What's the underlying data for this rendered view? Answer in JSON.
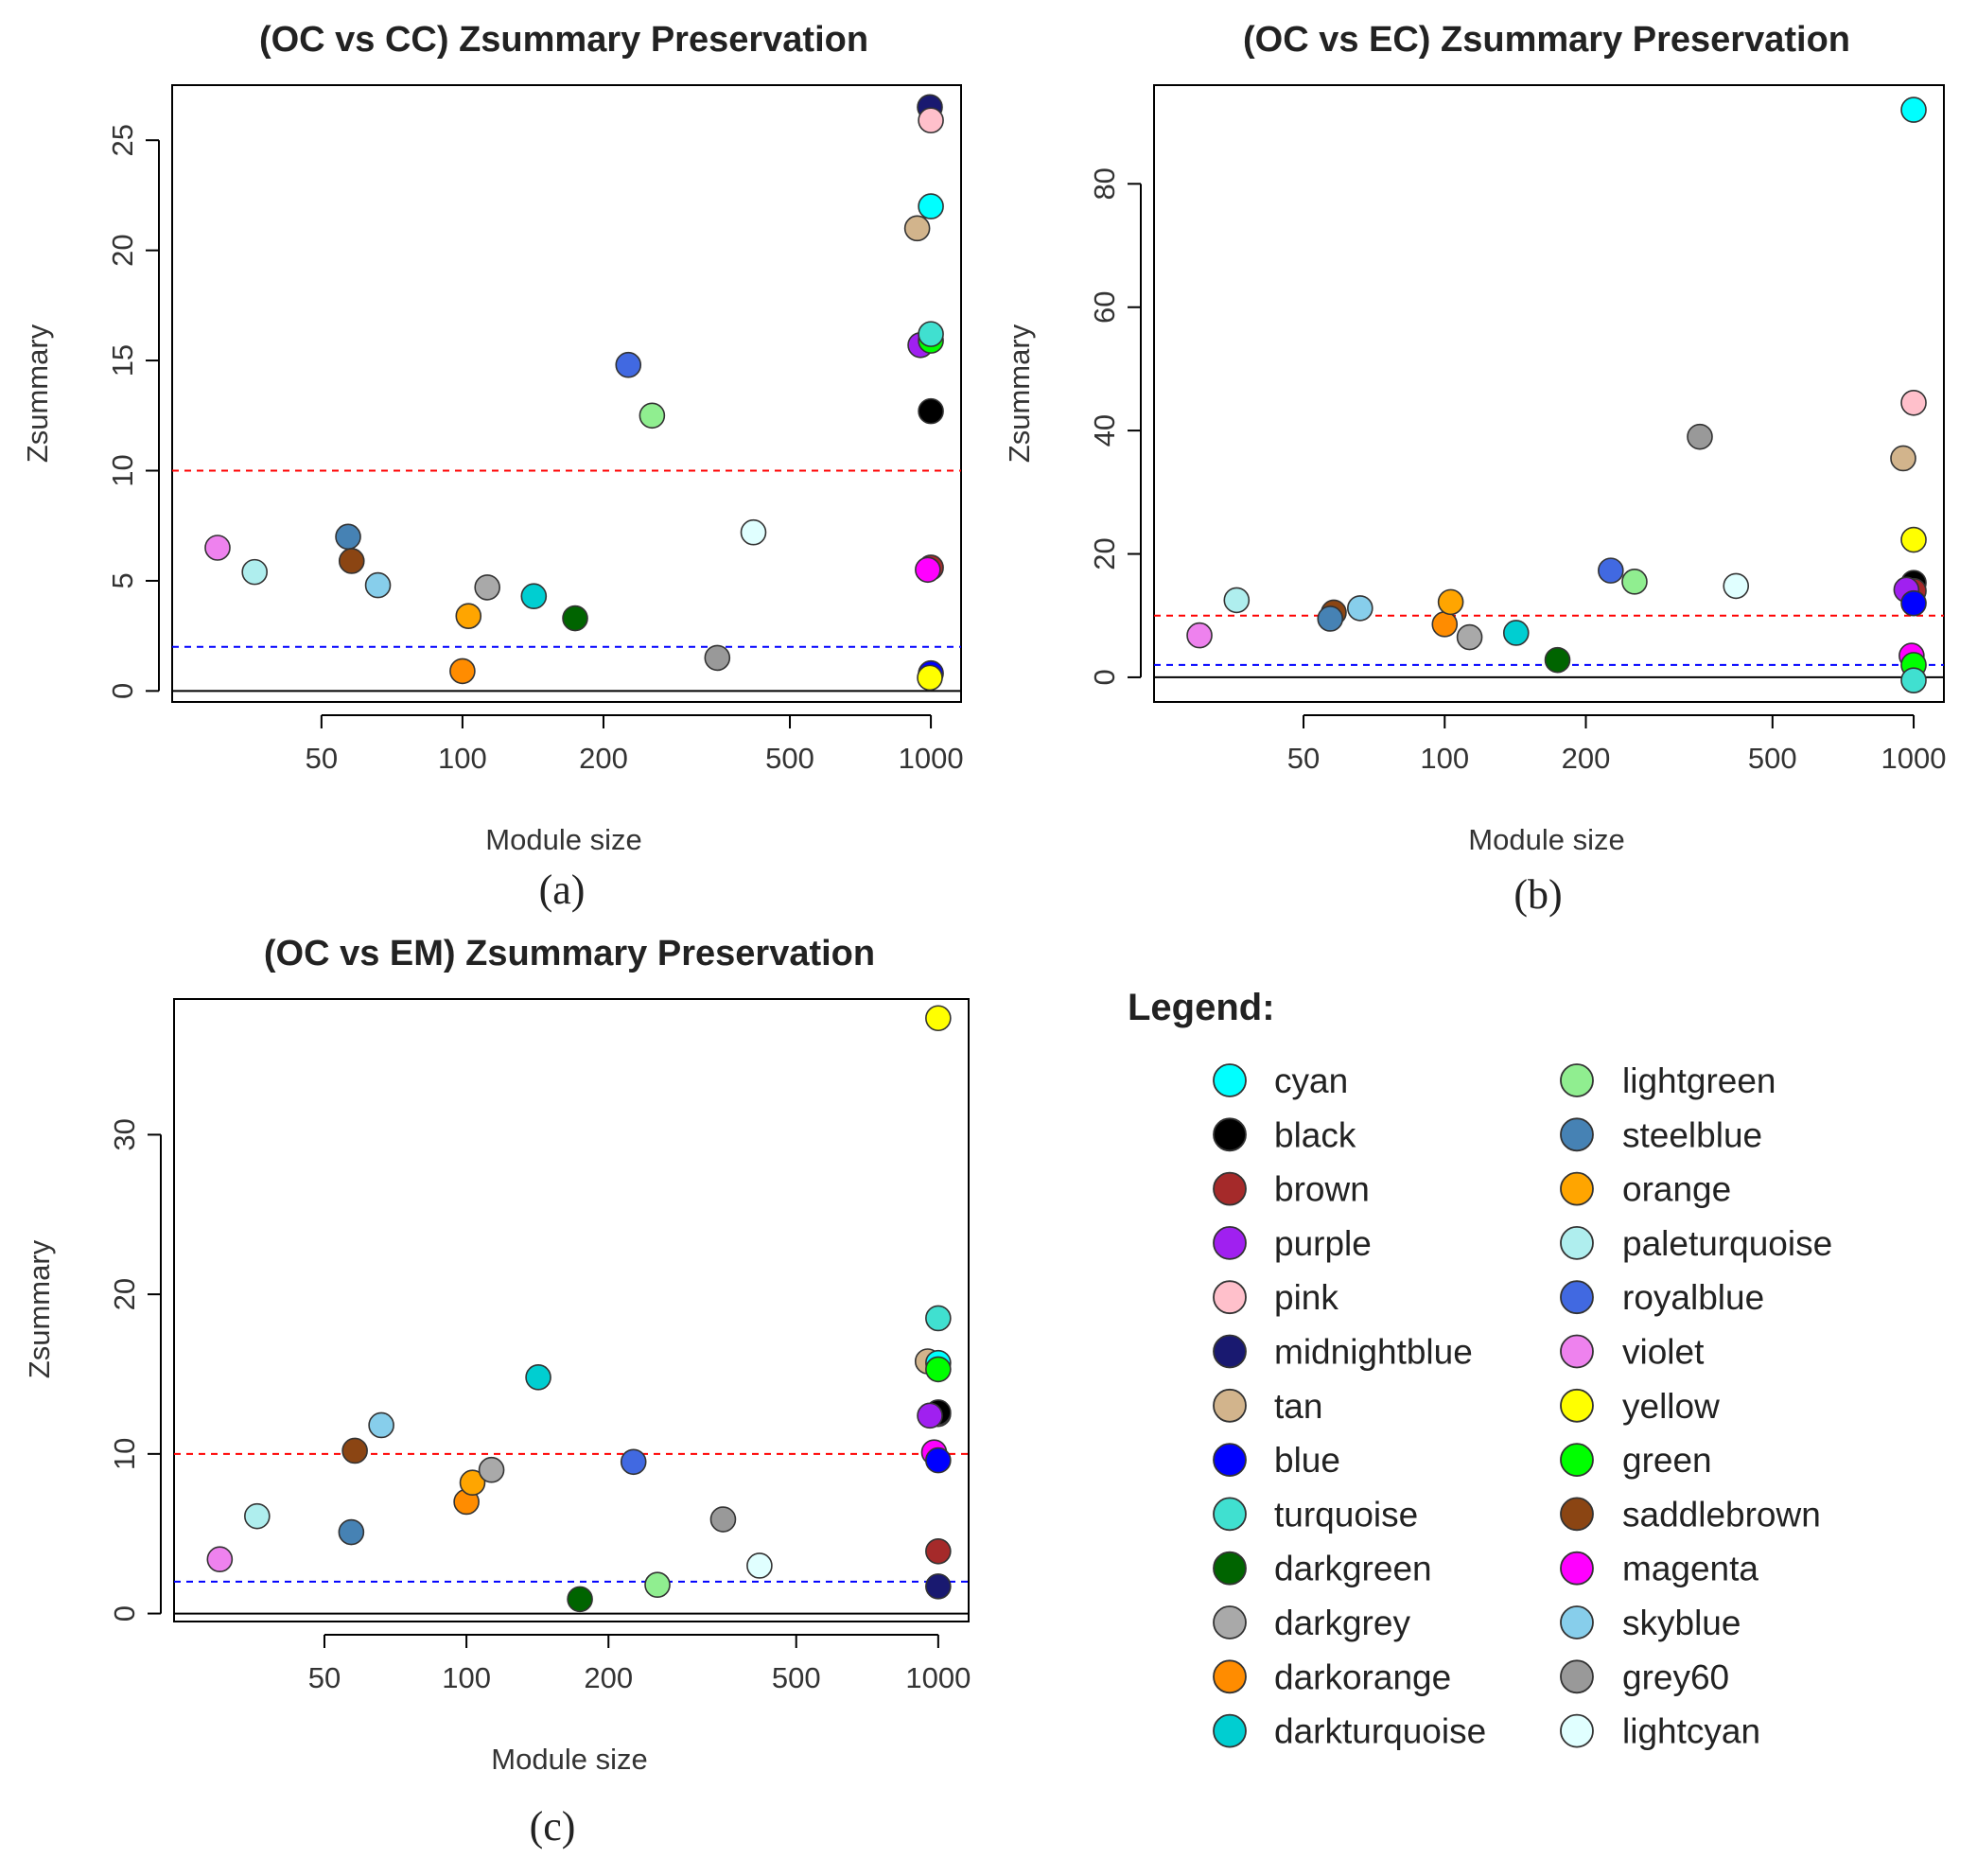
{
  "legend": {
    "title": "Legend:",
    "entries": [
      {
        "name": "cyan",
        "color": "#00ffff"
      },
      {
        "name": "black",
        "color": "#000000"
      },
      {
        "name": "brown",
        "color": "#a52a2a"
      },
      {
        "name": "purple",
        "color": "#a020f0"
      },
      {
        "name": "pink",
        "color": "#ffc0cb"
      },
      {
        "name": "midnightblue",
        "color": "#191970"
      },
      {
        "name": "tan",
        "color": "#d2b48c"
      },
      {
        "name": "blue",
        "color": "#0000ff"
      },
      {
        "name": "turquoise",
        "color": "#40e0d0"
      },
      {
        "name": "darkgreen",
        "color": "#006400"
      },
      {
        "name": "darkgrey",
        "color": "#a9a9a9"
      },
      {
        "name": "darkorange",
        "color": "#ff8c00"
      },
      {
        "name": "darkturquoise",
        "color": "#00ced1"
      },
      {
        "name": "lightgreen",
        "color": "#90ee90"
      },
      {
        "name": "steelblue",
        "color": "#4682b4"
      },
      {
        "name": "orange",
        "color": "#ffa500"
      },
      {
        "name": "paleturquoise",
        "color": "#afeeee"
      },
      {
        "name": "royalblue",
        "color": "#4169e1"
      },
      {
        "name": "violet",
        "color": "#ee82ee"
      },
      {
        "name": "yellow",
        "color": "#ffff00"
      },
      {
        "name": "green",
        "color": "#00ff00"
      },
      {
        "name": "saddlebrown",
        "color": "#8b4513"
      },
      {
        "name": "magenta",
        "color": "#ff00ff"
      },
      {
        "name": "skyblue",
        "color": "#87ceeb"
      },
      {
        "name": "grey60",
        "color": "#999999"
      },
      {
        "name": "lightcyan",
        "color": "#e0ffff"
      }
    ]
  },
  "chart_data": [
    {
      "type": "scatter",
      "panel_label": "(a)",
      "title": "(OC vs CC) Zsummary Preservation",
      "xlabel": "Module size",
      "ylabel": "Zsummary",
      "x_scale": "log",
      "xlim": [
        24,
        1160
      ],
      "ylim": [
        -0.5,
        27.5
      ],
      "xticks": [
        50,
        100,
        200,
        500,
        1000
      ],
      "yticks": [
        0,
        5,
        10,
        15,
        20,
        25
      ],
      "reference_lines": [
        {
          "y": 10,
          "color": "#ff0000",
          "style": "dashed"
        },
        {
          "y": 2,
          "color": "#0000ff",
          "style": "dashed"
        },
        {
          "y": 0,
          "color": "#000000",
          "style": "solid"
        }
      ],
      "points": [
        {
          "module": "violet",
          "x": 30,
          "y": 6.5
        },
        {
          "module": "paleturquoise",
          "x": 36,
          "y": 5.4
        },
        {
          "module": "steelblue",
          "x": 57,
          "y": 7.0
        },
        {
          "module": "saddlebrown",
          "x": 58,
          "y": 5.9
        },
        {
          "module": "skyblue",
          "x": 66,
          "y": 4.8
        },
        {
          "module": "orange",
          "x": 103,
          "y": 3.4
        },
        {
          "module": "darkorange",
          "x": 100,
          "y": 0.9
        },
        {
          "module": "darkgrey",
          "x": 113,
          "y": 4.7
        },
        {
          "module": "darkturquoise",
          "x": 142,
          "y": 4.3
        },
        {
          "module": "darkgreen",
          "x": 174,
          "y": 3.3
        },
        {
          "module": "royalblue",
          "x": 226,
          "y": 14.8
        },
        {
          "module": "lightgreen",
          "x": 254,
          "y": 12.5
        },
        {
          "module": "grey60",
          "x": 350,
          "y": 1.5
        },
        {
          "module": "lightcyan",
          "x": 418,
          "y": 7.2
        },
        {
          "module": "tan",
          "x": 935,
          "y": 21.0
        },
        {
          "module": "purple",
          "x": 950,
          "y": 15.7
        },
        {
          "module": "midnightblue",
          "x": 995,
          "y": 26.5
        },
        {
          "module": "pink",
          "x": 1000,
          "y": 25.9
        },
        {
          "module": "cyan",
          "x": 1000,
          "y": 22.0
        },
        {
          "module": "green",
          "x": 1000,
          "y": 15.9
        },
        {
          "module": "turquoise",
          "x": 1000,
          "y": 16.2
        },
        {
          "module": "black",
          "x": 1000,
          "y": 12.7
        },
        {
          "module": "brown",
          "x": 1000,
          "y": 5.6
        },
        {
          "module": "magenta",
          "x": 985,
          "y": 5.5
        },
        {
          "module": "blue",
          "x": 1000,
          "y": 0.8
        },
        {
          "module": "yellow",
          "x": 995,
          "y": 0.6
        }
      ]
    },
    {
      "type": "scatter",
      "panel_label": "(b)",
      "title": "(OC vs EC) Zsummary Preservation",
      "xlabel": "Module size",
      "ylabel": "Zsummary",
      "x_scale": "log",
      "xlim": [
        24,
        1160
      ],
      "ylim": [
        -4,
        96
      ],
      "xticks": [
        50,
        100,
        200,
        500,
        1000
      ],
      "yticks": [
        0,
        20,
        40,
        60,
        80
      ],
      "reference_lines": [
        {
          "y": 10,
          "color": "#ff0000",
          "style": "dashed"
        },
        {
          "y": 2,
          "color": "#0000ff",
          "style": "dashed"
        },
        {
          "y": 0,
          "color": "#000000",
          "style": "solid"
        }
      ],
      "points": [
        {
          "module": "violet",
          "x": 30,
          "y": 6.8
        },
        {
          "module": "paleturquoise",
          "x": 36,
          "y": 12.5
        },
        {
          "module": "saddlebrown",
          "x": 58,
          "y": 10.5
        },
        {
          "module": "steelblue",
          "x": 57,
          "y": 9.5
        },
        {
          "module": "skyblue",
          "x": 66,
          "y": 11.2
        },
        {
          "module": "darkorange",
          "x": 100,
          "y": 8.6
        },
        {
          "module": "orange",
          "x": 103,
          "y": 12.2
        },
        {
          "module": "darkgrey",
          "x": 113,
          "y": 6.5
        },
        {
          "module": "darkturquoise",
          "x": 142,
          "y": 7.2
        },
        {
          "module": "darkgreen",
          "x": 174,
          "y": 2.8
        },
        {
          "module": "royalblue",
          "x": 226,
          "y": 17.3
        },
        {
          "module": "lightgreen",
          "x": 254,
          "y": 15.5
        },
        {
          "module": "grey60",
          "x": 350,
          "y": 39.0
        },
        {
          "module": "lightcyan",
          "x": 418,
          "y": 14.8
        },
        {
          "module": "tan",
          "x": 950,
          "y": 35.5
        },
        {
          "module": "pink",
          "x": 1000,
          "y": 44.5
        },
        {
          "module": "cyan",
          "x": 1000,
          "y": 92.0
        },
        {
          "module": "yellow",
          "x": 1000,
          "y": 22.3
        },
        {
          "module": "black",
          "x": 1000,
          "y": 15.3
        },
        {
          "module": "brown",
          "x": 1000,
          "y": 14.0
        },
        {
          "module": "purple",
          "x": 965,
          "y": 14.2
        },
        {
          "module": "blue",
          "x": 1000,
          "y": 12.0
        },
        {
          "module": "magenta",
          "x": 990,
          "y": 3.5
        },
        {
          "module": "green",
          "x": 1000,
          "y": 2.0
        },
        {
          "module": "turquoise",
          "x": 1000,
          "y": -0.5
        }
      ]
    },
    {
      "type": "scatter",
      "panel_label": "(c)",
      "title": "(OC vs EM) Zsummary Preservation",
      "xlabel": "Module size",
      "ylabel": "Zsummary",
      "x_scale": "log",
      "xlim": [
        24,
        1160
      ],
      "ylim": [
        -0.5,
        38.5
      ],
      "xticks": [
        50,
        100,
        200,
        500,
        1000
      ],
      "yticks": [
        0,
        10,
        20,
        30
      ],
      "reference_lines": [
        {
          "y": 10,
          "color": "#ff0000",
          "style": "dashed"
        },
        {
          "y": 2,
          "color": "#0000ff",
          "style": "dashed"
        },
        {
          "y": 0,
          "color": "#000000",
          "style": "solid"
        }
      ],
      "points": [
        {
          "module": "violet",
          "x": 30,
          "y": 3.4
        },
        {
          "module": "paleturquoise",
          "x": 36,
          "y": 6.1
        },
        {
          "module": "steelblue",
          "x": 57,
          "y": 5.1
        },
        {
          "module": "saddlebrown",
          "x": 58,
          "y": 10.2
        },
        {
          "module": "skyblue",
          "x": 66,
          "y": 11.8
        },
        {
          "module": "darkorange",
          "x": 100,
          "y": 7.0
        },
        {
          "module": "orange",
          "x": 103,
          "y": 8.2
        },
        {
          "module": "darkgrey",
          "x": 113,
          "y": 9.0
        },
        {
          "module": "darkturquoise",
          "x": 142,
          "y": 14.8
        },
        {
          "module": "darkgreen",
          "x": 174,
          "y": 0.9
        },
        {
          "module": "royalblue",
          "x": 226,
          "y": 9.5
        },
        {
          "module": "lightgreen",
          "x": 254,
          "y": 1.8
        },
        {
          "module": "grey60",
          "x": 350,
          "y": 5.9
        },
        {
          "module": "lightcyan",
          "x": 418,
          "y": 3.0
        },
        {
          "module": "yellow",
          "x": 1000,
          "y": 37.3
        },
        {
          "module": "turquoise",
          "x": 1000,
          "y": 18.5
        },
        {
          "module": "tan",
          "x": 950,
          "y": 15.8
        },
        {
          "module": "cyan",
          "x": 1000,
          "y": 15.7
        },
        {
          "module": "green",
          "x": 1000,
          "y": 15.3
        },
        {
          "module": "pink",
          "x": 1000,
          "y": 12.5
        },
        {
          "module": "black",
          "x": 1000,
          "y": 12.6
        },
        {
          "module": "purple",
          "x": 960,
          "y": 12.4
        },
        {
          "module": "magenta",
          "x": 980,
          "y": 10.1
        },
        {
          "module": "blue",
          "x": 1000,
          "y": 9.6
        },
        {
          "module": "brown",
          "x": 1000,
          "y": 3.9
        },
        {
          "module": "midnightblue",
          "x": 1000,
          "y": 1.7
        }
      ]
    }
  ]
}
